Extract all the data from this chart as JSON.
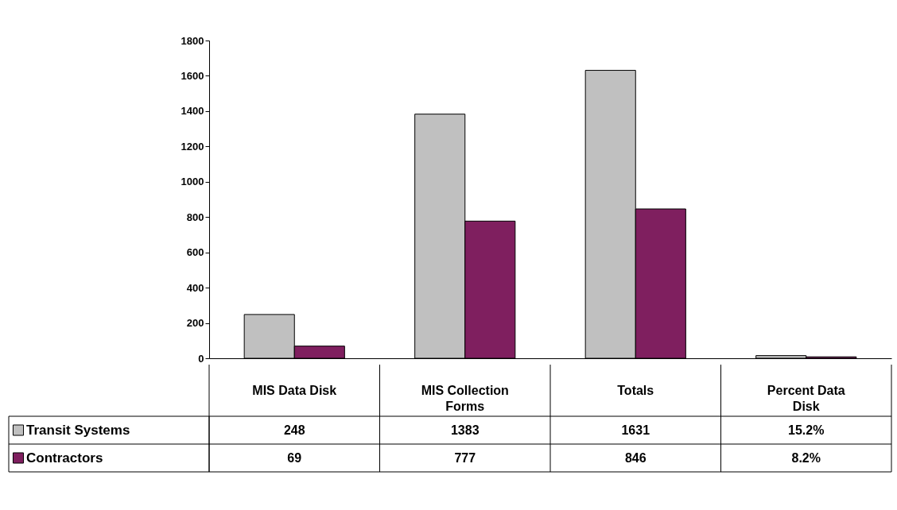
{
  "chart_data": {
    "type": "bar",
    "categories": [
      "MIS Data Disk",
      "MIS Collection Forms",
      "Totals",
      "Percent Data Disk"
    ],
    "series": [
      {
        "name": "Transit Systems",
        "color": "#c0c0c0",
        "values": [
          248,
          1383,
          1631,
          15.2
        ],
        "value_labels": [
          "248",
          "1383",
          "1631",
          "15.2%"
        ]
      },
      {
        "name": "Contractors",
        "color": "#7f1f5f",
        "values": [
          69,
          777,
          846,
          8.2
        ],
        "value_labels": [
          "69",
          "777",
          "846",
          "8.2%"
        ]
      }
    ],
    "ylim": [
      0,
      1800
    ],
    "yticks": [
      0,
      200,
      400,
      600,
      800,
      1000,
      1200,
      1400,
      1600,
      1800
    ],
    "grid": false,
    "legend": "bottom left"
  }
}
